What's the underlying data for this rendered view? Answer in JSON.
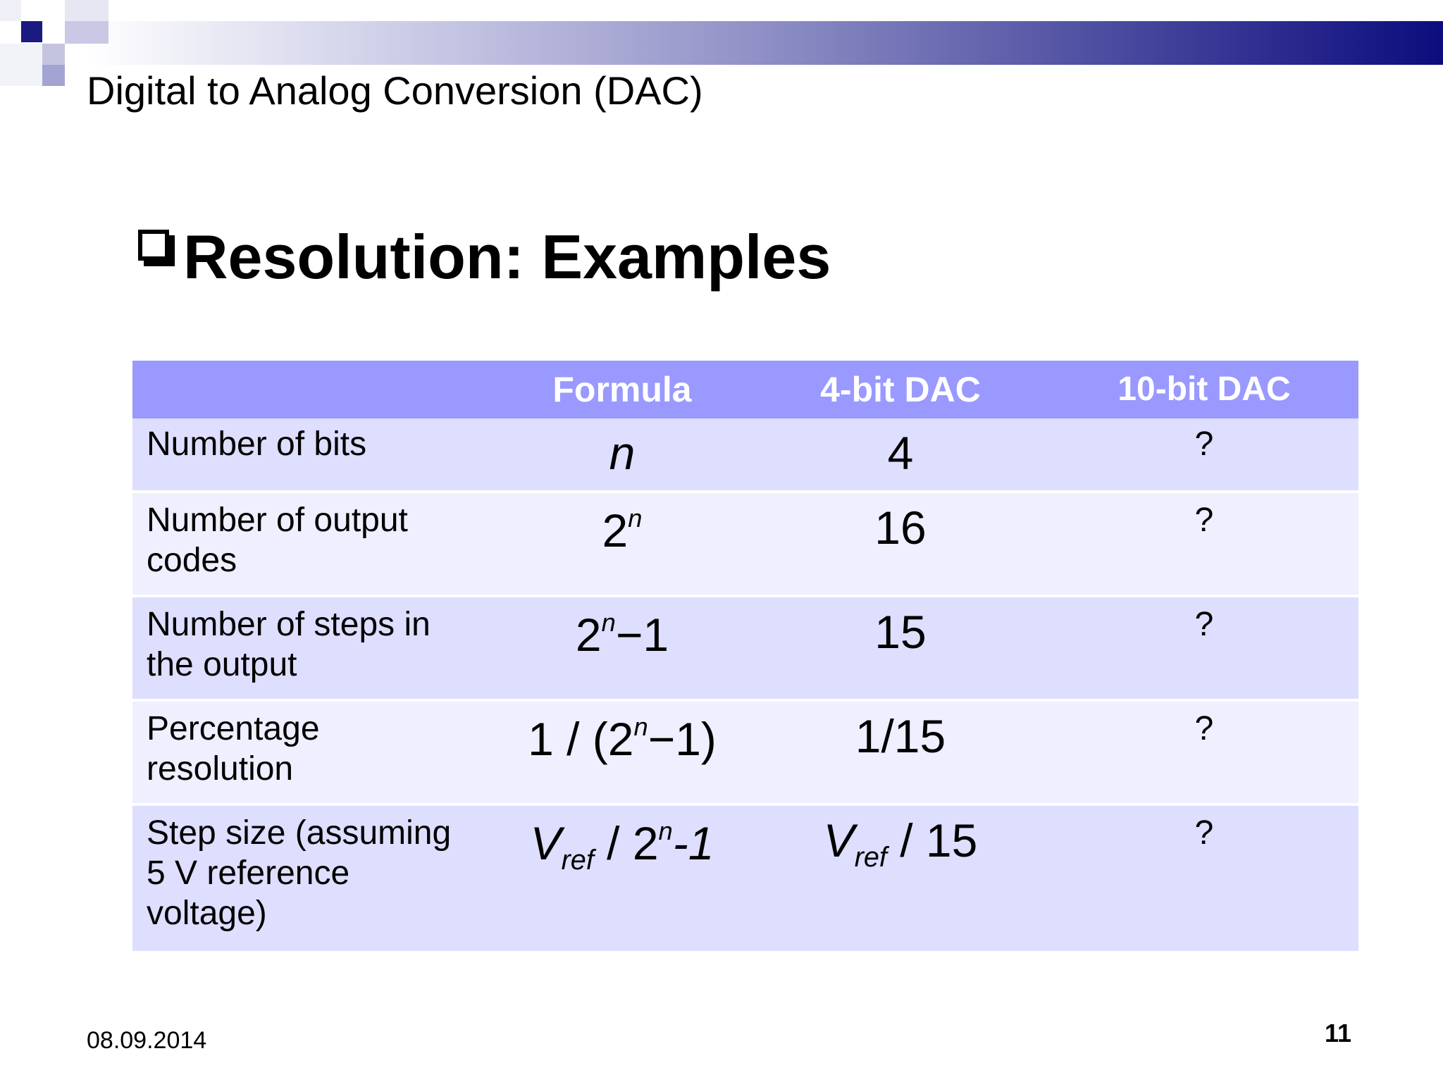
{
  "slide": {
    "title": "Digital to Analog Conversion (DAC)",
    "heading": "Resolution: Examples",
    "date": "08.09.2014",
    "page_number": "11"
  },
  "table": {
    "headers": [
      "",
      "Formula",
      "4-bit DAC",
      "10-bit DAC"
    ],
    "rows": [
      {
        "label": "Number of bits",
        "formula": "n",
        "four_bit": "4",
        "ten_bit": "?"
      },
      {
        "label_line1": "Number of output",
        "label_line2": "codes",
        "formula_base": "2",
        "formula_exp": "n",
        "four_bit": "16",
        "ten_bit": "?"
      },
      {
        "label_line1": "Number of steps in",
        "label_line2": "the output",
        "formula_base": "2",
        "formula_exp": "n",
        "formula_tail": "−1",
        "four_bit": "15",
        "ten_bit": "?"
      },
      {
        "label_line1": "Percentage",
        "label_line2": "resolution",
        "formula_pre": "1 / (2",
        "formula_exp": "n",
        "formula_tail": "−1)",
        "four_bit": "1/15",
        "ten_bit": "?"
      },
      {
        "label_line1": "Step size (assuming",
        "label_line2": "5 V reference",
        "label_line3": "voltage)",
        "formula_v": "V",
        "formula_sub": "ref",
        "formula_mid": " / 2",
        "formula_exp": "n",
        "formula_tail": "-1",
        "four_bit_v": "V",
        "four_bit_sub": "ref",
        "four_bit_tail": " / 15",
        "ten_bit": "?"
      }
    ]
  },
  "colors": {
    "header_bar_end": "#0c0c7e",
    "table_header": "#9999ff",
    "row_dark": "#dedeff",
    "row_light": "#efefff"
  }
}
